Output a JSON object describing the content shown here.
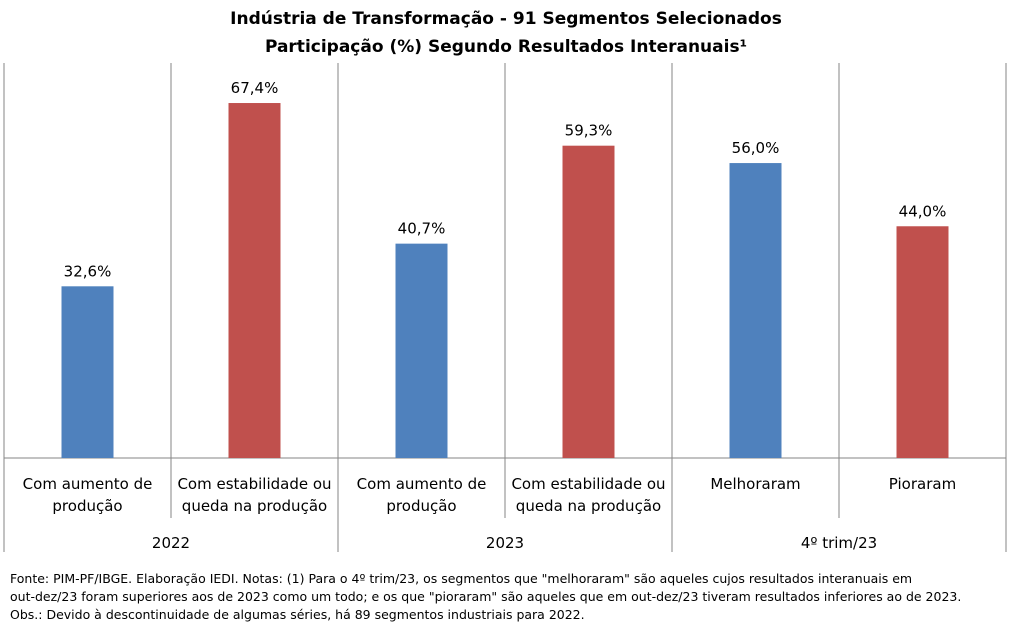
{
  "chart_data": {
    "type": "bar",
    "title": "Indústria de Transformação - 91 Segmentos Selecionados",
    "subtitle": "Participação (%) Segundo Resultados Interanuais¹",
    "ylim": [
      0,
      75
    ],
    "grid": false,
    "legend": "none",
    "groups": [
      {
        "label": "2022",
        "bars": [
          {
            "label": [
              "Com aumento de",
              "produção"
            ],
            "value": 32.6,
            "display": "32,6%",
            "color": "#4f81bd"
          },
          {
            "label": [
              "Com estabilidade ou",
              "queda na produção"
            ],
            "value": 67.4,
            "display": "67,4%",
            "color": "#c0504d"
          }
        ]
      },
      {
        "label": "2023",
        "bars": [
          {
            "label": [
              "Com aumento de",
              "produção"
            ],
            "value": 40.7,
            "display": "40,7%",
            "color": "#4f81bd"
          },
          {
            "label": [
              "Com estabilidade ou",
              "queda na produção"
            ],
            "value": 59.3,
            "display": "59,3%",
            "color": "#c0504d"
          }
        ]
      },
      {
        "label": "4º trim/23",
        "bars": [
          {
            "label": [
              "Melhoraram"
            ],
            "value": 56.0,
            "display": "56,0%",
            "color": "#4f81bd"
          },
          {
            "label": [
              "Pioraram"
            ],
            "value": 44.0,
            "display": "44,0%",
            "color": "#c0504d"
          }
        ]
      }
    ]
  },
  "footnote": {
    "line1": "Fonte: PIM-PF/IBGE. Elaboração IEDI. Notas: (1) Para o 4º trim/23,  os segmentos que \"melhoraram\"  são aqueles cujos resultados interanuais em",
    "line2": "out-dez/23  foram  superiores aos de 2023 como um todo; e os que \"pioraram\" são aqueles que em out-dez/23 tiveram resultados inferiores ao de 2023.",
    "line3": "Obs.: Devido à descontinuidade de algumas séries, há 89 segmentos industriais para 2022."
  }
}
